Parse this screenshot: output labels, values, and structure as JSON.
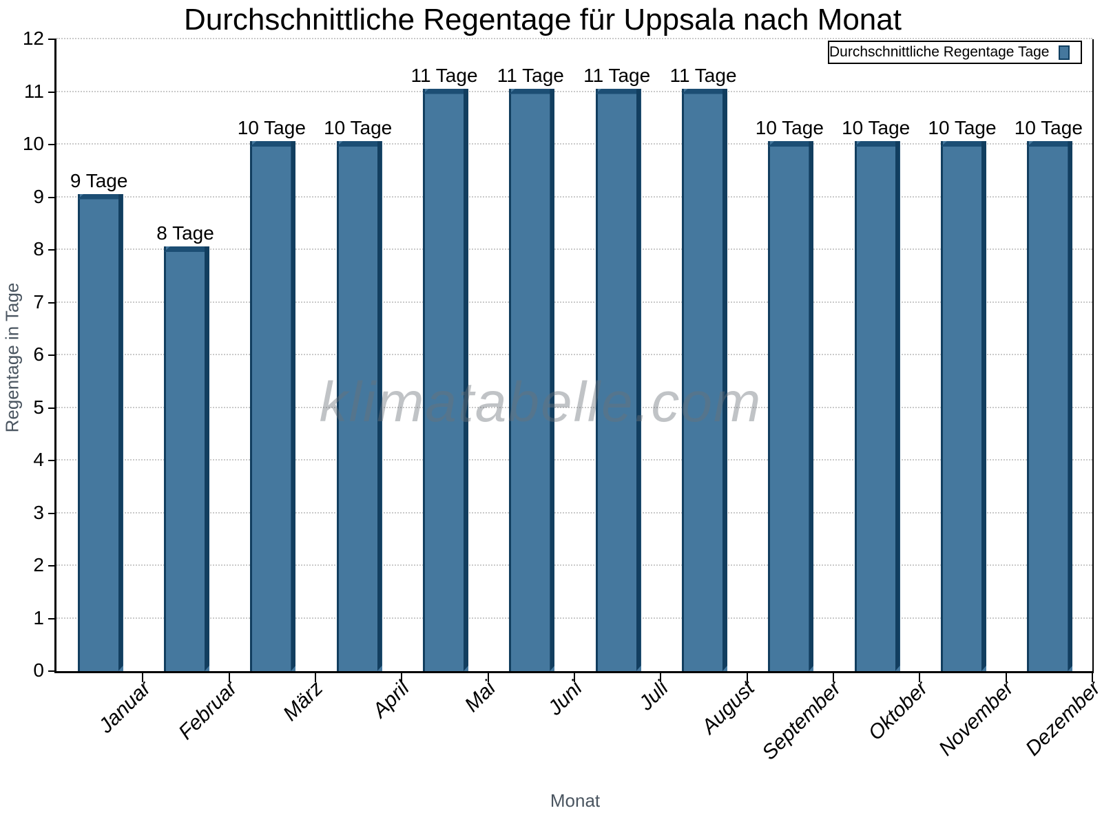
{
  "title": "Durchschnittliche Regentage für Uppsala nach Monat",
  "watermark": "klimatabelle.com",
  "legend": {
    "label": "Durchschnittliche Regentage Tage"
  },
  "axes": {
    "x_label": "Monat",
    "y_label": "Regentage in Tage"
  },
  "colors": {
    "bar_front": "#45789E",
    "bar_top": "#1C4E74",
    "bar_side": "#123E5F",
    "grid": "#C9C9C9",
    "axis": "#000000",
    "axis_title": "#4A5560",
    "watermark": "#6B7178",
    "text": "#000000"
  },
  "chart_data": {
    "type": "bar",
    "title": "Durchschnittliche Regentage für Uppsala nach Monat",
    "xlabel": "Monat",
    "ylabel": "Regentage in Tage",
    "categories": [
      "Januar",
      "Februar",
      "März",
      "April",
      "Mai",
      "Juni",
      "Juli",
      "August",
      "September",
      "Oktober",
      "November",
      "Dezember"
    ],
    "values": [
      9,
      8,
      10,
      10,
      11,
      11,
      11,
      11,
      10,
      10,
      10,
      10
    ],
    "value_labels": [
      "9 Tage",
      "8 Tage",
      "10 Tage",
      "10 Tage",
      "11 Tage",
      "11 Tage",
      "11 Tage",
      "11 Tage",
      "10 Tage",
      "10 Tage",
      "10 Tage",
      "10 Tage"
    ],
    "unit": "Tage",
    "ylim": [
      0,
      12
    ],
    "yticks": [
      0,
      1,
      2,
      3,
      4,
      5,
      6,
      7,
      8,
      9,
      10,
      11,
      12
    ],
    "grid": "horizontal dotted",
    "legend_position": "top-right",
    "legend_entries": [
      "Durchschnittliche Regentage Tage"
    ]
  }
}
